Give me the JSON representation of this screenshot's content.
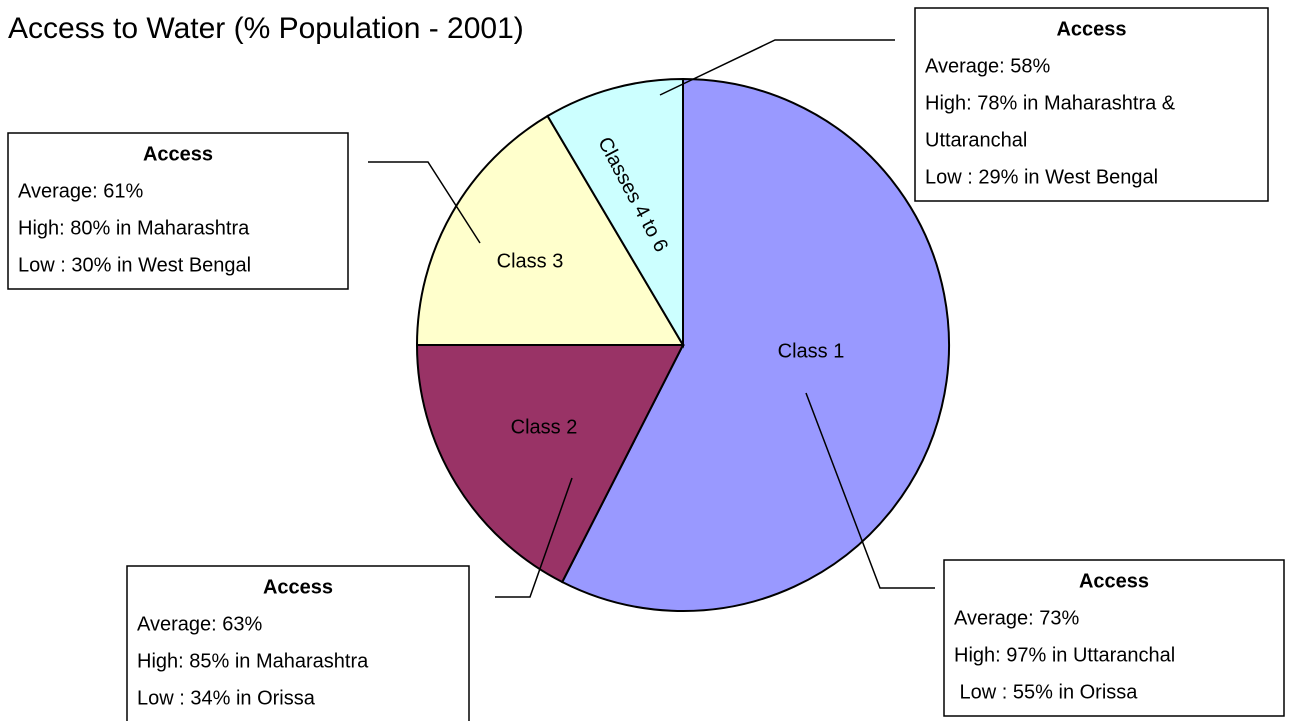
{
  "chart_data": {
    "type": "pie",
    "title": "Access to Water (% Population - 2001)",
    "categories": [
      "Class 1",
      "Class 2",
      "Class 3",
      "Classes 4 to 6"
    ],
    "values": [
      57.5,
      17.5,
      16.5,
      8.5
    ],
    "colors": [
      "#9999ff",
      "#993366",
      "#ffffcc",
      "#ccffff"
    ],
    "annotations": [
      {
        "heading": "Access",
        "lines": [
          "Average: 73%",
          "High: 97% in Uttaranchal",
          " Low : 55% in Orissa"
        ]
      },
      {
        "heading": "Access",
        "lines": [
          "Average: 63%",
          "High: 85% in Maharashtra",
          "Low : 34% in Orissa"
        ]
      },
      {
        "heading": "Access",
        "lines": [
          "Average: 61%",
          "High: 80% in Maharashtra",
          "Low : 30% in West Bengal"
        ]
      },
      {
        "heading": "Access",
        "lines": [
          "Average: 58%",
          "High: 78% in Maharashtra &",
          "Uttaranchal",
          "Low : 29% in West Bengal"
        ]
      }
    ]
  }
}
